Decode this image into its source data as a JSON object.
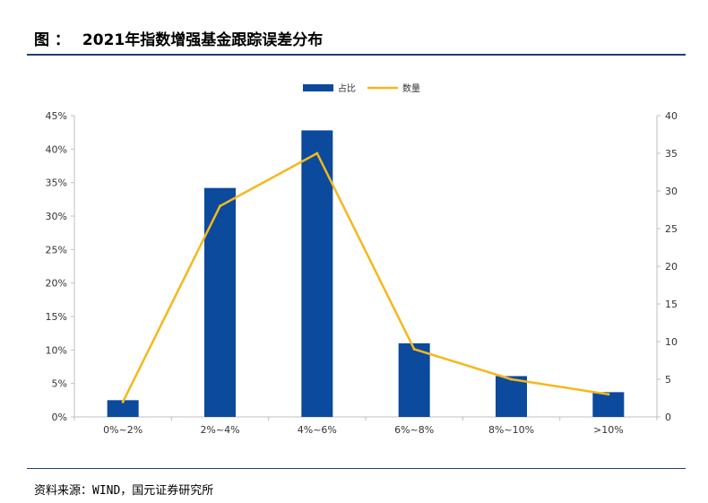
{
  "figure": {
    "title_prefix": "图 ：",
    "title": "2021年指数增强基金跟踪误差分布",
    "source": "资料来源：WIND，国元证券研究所"
  },
  "colors": {
    "bar": "#0b4a9c",
    "line": "#f5b81c",
    "rule": "#1f3d7a",
    "axis": "#bfbfbf"
  },
  "chart_data": {
    "type": "bar",
    "categories": [
      "0%~2%",
      "2%~4%",
      "4%~6%",
      "6%~8%",
      "8%~10%",
      ">10%"
    ],
    "series": [
      {
        "name": "占比",
        "type": "bar",
        "axis": "left",
        "values": [
          0.025,
          0.342,
          0.428,
          0.11,
          0.061,
          0.037
        ]
      },
      {
        "name": "数量",
        "type": "line",
        "axis": "right",
        "values": [
          2,
          28,
          35,
          9,
          5,
          3
        ]
      }
    ],
    "y_left": {
      "min": 0,
      "max": 0.45,
      "step": 0.05,
      "ticks": [
        "0%",
        "5%",
        "10%",
        "15%",
        "20%",
        "25%",
        "30%",
        "35%",
        "40%",
        "45%"
      ]
    },
    "y_right": {
      "min": 0,
      "max": 40,
      "step": 5,
      "ticks": [
        "0",
        "5",
        "10",
        "15",
        "20",
        "25",
        "30",
        "35",
        "40"
      ]
    },
    "legend": {
      "position": "top-center"
    },
    "grid": false
  }
}
